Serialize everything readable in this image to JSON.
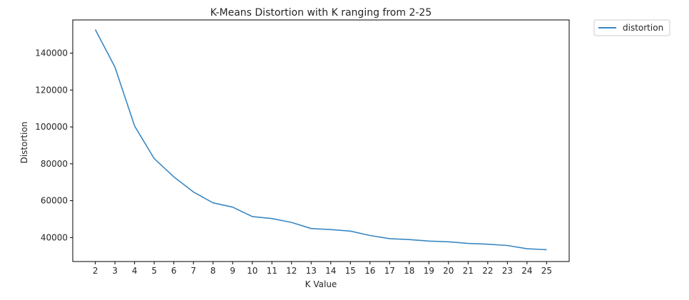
{
  "chart_data": {
    "type": "line",
    "title": "K-Means Distortion with K ranging from 2-25",
    "xlabel": "K Value",
    "ylabel": "Distortion",
    "x": [
      2,
      3,
      4,
      5,
      6,
      7,
      8,
      9,
      10,
      11,
      12,
      13,
      14,
      15,
      16,
      17,
      18,
      19,
      20,
      21,
      22,
      23,
      24,
      25
    ],
    "x_tick_labels": [
      "2",
      "3",
      "4",
      "5",
      "6",
      "7",
      "8",
      "9",
      "10",
      "11",
      "12",
      "13",
      "14",
      "15",
      "16",
      "17",
      "18",
      "19",
      "20",
      "21",
      "22",
      "23",
      "24",
      "25"
    ],
    "y_ticks": [
      40000,
      60000,
      80000,
      100000,
      120000,
      140000
    ],
    "y_tick_labels": [
      "40000",
      "60000",
      "80000",
      "100000",
      "120000",
      "140000"
    ],
    "xlim": [
      0.85,
      26.15
    ],
    "ylim": [
      27000,
      158000
    ],
    "series": [
      {
        "name": "distortion",
        "color": "#3a87c3",
        "values": [
          152800,
          132500,
          100500,
          82800,
          72900,
          64700,
          58800,
          56500,
          51400,
          50300,
          48200,
          44900,
          44300,
          43500,
          41100,
          39400,
          38900,
          38100,
          37700,
          36800,
          36400,
          35700,
          33900,
          33400
        ]
      }
    ],
    "legend": {
      "position": "outside-top-right"
    },
    "grid": false
  }
}
